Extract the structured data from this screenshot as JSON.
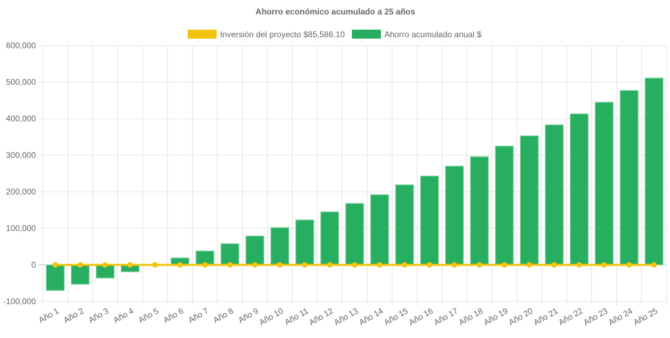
{
  "chart_data": {
    "type": "bar",
    "title": "Ahorro económico acumulado a 25 años",
    "categories": [
      "Año 1",
      "Año 2",
      "Año 3",
      "Año 4",
      "Año 5",
      "Año 6",
      "Año 7",
      "Año 8",
      "Año 9",
      "Año 10",
      "Año 11",
      "Año 12",
      "Año 13",
      "Año 14",
      "Año 15",
      "Año 16",
      "Año 17",
      "Año 18",
      "Año 19",
      "Año 20",
      "Año 21",
      "Año 22",
      "Año 23",
      "Año 24",
      "Año 25"
    ],
    "series": [
      {
        "name": "Inversión del proyecto $85,586.10",
        "type": "line",
        "color": "#f1c40f",
        "values": [
          0,
          0,
          0,
          0,
          0,
          0,
          0,
          0,
          0,
          0,
          0,
          0,
          0,
          0,
          0,
          0,
          0,
          0,
          0,
          0,
          0,
          0,
          0,
          0,
          0
        ]
      },
      {
        "name": "Ahorro acumulado anual $",
        "type": "bar",
        "color": "#27ae60",
        "values": [
          -70000,
          -53000,
          -36000,
          -19000,
          0,
          19000,
          38000,
          58000,
          79000,
          102000,
          123000,
          145000,
          168000,
          192000,
          219000,
          243000,
          270000,
          296000,
          325000,
          353000,
          383000,
          413000,
          445000,
          477000,
          511000
        ]
      }
    ],
    "ylim": [
      -100000,
      600000
    ],
    "yticks": [
      "600,000",
      "500,000",
      "400,000",
      "300,000",
      "200,000",
      "100,000",
      "0",
      "-100,000"
    ],
    "grid": true,
    "legend": "top"
  }
}
